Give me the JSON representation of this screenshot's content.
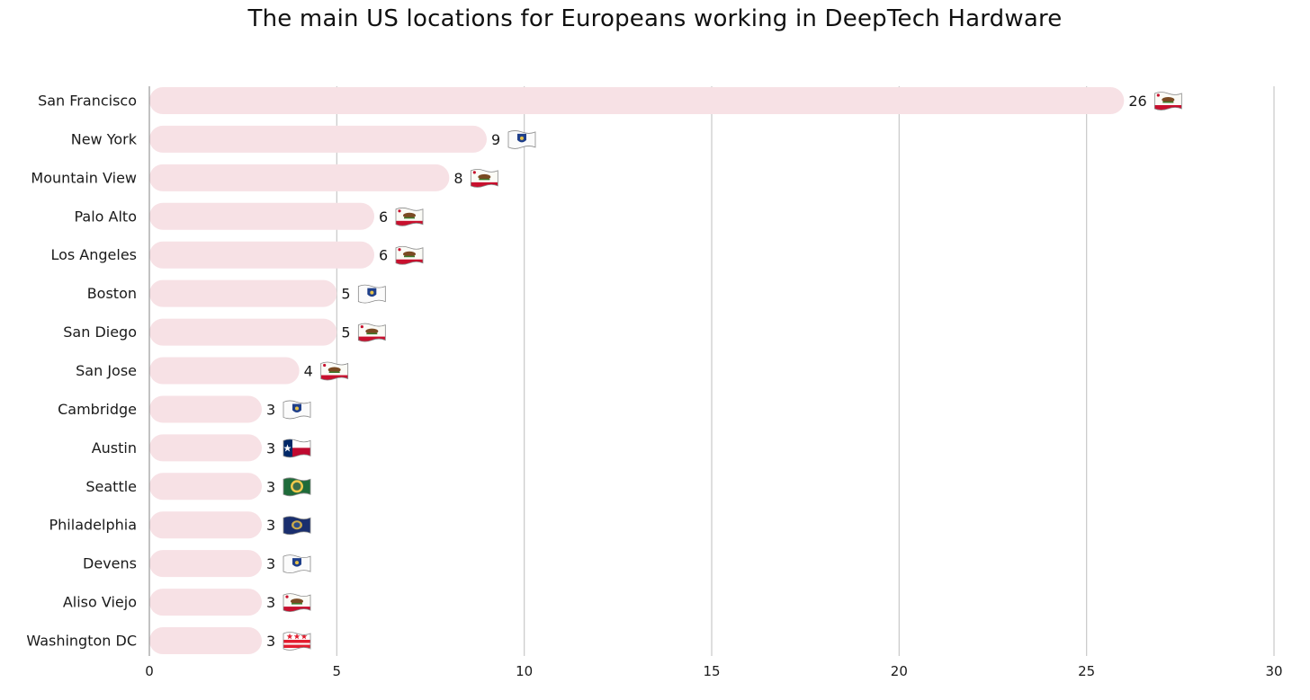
{
  "chart_data": {
    "type": "bar",
    "orientation": "horizontal",
    "title": "The main US locations for Europeans working in DeepTech Hardware",
    "xlabel": "",
    "ylabel": "",
    "xlim": [
      0,
      30
    ],
    "xticks": [
      0,
      5,
      10,
      15,
      20,
      25,
      30
    ],
    "grid": true,
    "legend": "none",
    "bar_color": "#f7e1e5",
    "categories": [
      "San Francisco",
      "New York",
      "Mountain View",
      "Palo Alto",
      "Los Angeles",
      "Boston",
      "San Diego",
      "San Jose",
      "Cambridge",
      "Austin",
      "Seattle",
      "Philadelphia",
      "Devens",
      "Aliso Viejo",
      "Washington DC"
    ],
    "values": [
      26,
      9,
      8,
      6,
      6,
      5,
      5,
      4,
      3,
      3,
      3,
      3,
      3,
      3,
      3
    ],
    "flags": [
      "california-flag-icon",
      "massachusetts-flag-icon",
      "california-flag-icon",
      "california-flag-icon",
      "california-flag-icon",
      "massachusetts-flag-icon",
      "california-flag-icon",
      "california-flag-icon",
      "massachusetts-flag-icon",
      "texas-flag-icon",
      "washington-flag-icon",
      "pennsylvania-flag-icon",
      "massachusetts-flag-icon",
      "california-flag-icon",
      "dc-flag-icon"
    ]
  }
}
